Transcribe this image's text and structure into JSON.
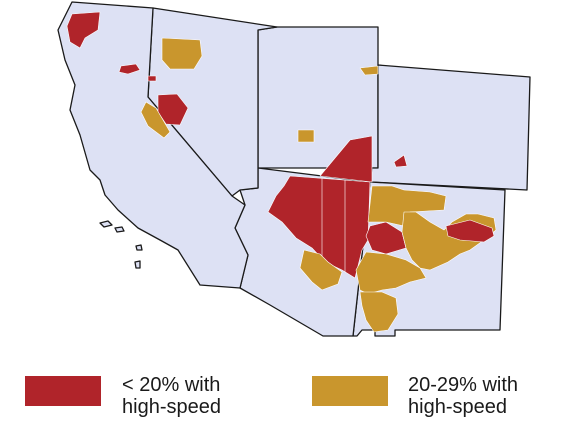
{
  "colors": {
    "land": "#dde1f4",
    "low": "#b0242a",
    "mid": "#c9962d",
    "border": "#1a1a1a"
  },
  "states": [
    {
      "name": "california",
      "label": ""
    },
    {
      "name": "nevada",
      "label": ""
    },
    {
      "name": "utah",
      "label": ""
    },
    {
      "name": "colorado",
      "label": ""
    },
    {
      "name": "arizona",
      "label": ""
    },
    {
      "name": "new-mexico",
      "label": ""
    }
  ],
  "legend": {
    "low": {
      "line1": "< 20% with",
      "line2": "high-speed",
      "color_key": "low"
    },
    "mid": {
      "line1": "20-29% with",
      "line2": "high-speed",
      "color_key": "mid"
    }
  }
}
